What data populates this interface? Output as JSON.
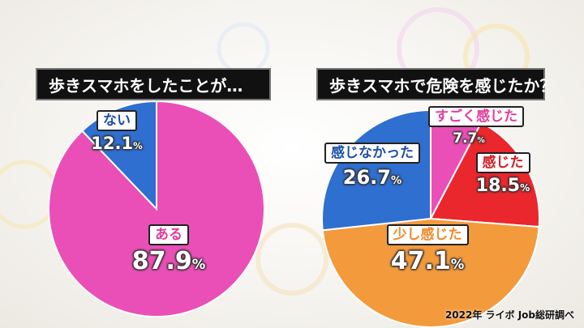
{
  "chart_data": [
    {
      "type": "pie",
      "title": "歩きスマホをしたことが…",
      "slices": [
        {
          "label": "ある",
          "value": 87.9,
          "value_text": "87.9",
          "color": "#ea4fb7",
          "tag_color": "#e23d9b"
        },
        {
          "label": "ない",
          "value": 12.1,
          "value_text": "12.1",
          "color": "#2f6fd0",
          "tag_color": "#1f4fa8"
        }
      ],
      "unit": "%"
    },
    {
      "type": "pie",
      "title": "歩きスマホで危険を感じたか？",
      "slices": [
        {
          "label": "すごく感じた",
          "value": 7.7,
          "value_text": "7.7",
          "color": "#ea4fb7",
          "tag_color": "#e23d9b"
        },
        {
          "label": "感じた",
          "value": 18.5,
          "value_text": "18.5",
          "color": "#e9272c",
          "tag_color": "#d01e23"
        },
        {
          "label": "少し感じた",
          "value": 47.1,
          "value_text": "47.1",
          "color": "#f39a3c",
          "tag_color": "#f08a2a"
        },
        {
          "label": "感じなかった",
          "value": 26.7,
          "value_text": "26.7",
          "color": "#2f6fd0",
          "tag_color": "#1f4fa8"
        }
      ],
      "unit": "%"
    }
  ],
  "source": "2022年 ライボ Job総研調べ"
}
